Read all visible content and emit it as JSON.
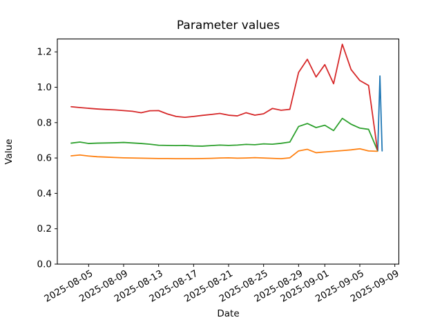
{
  "chart_data": {
    "type": "line",
    "title": "Parameter values",
    "xlabel": "Date",
    "ylabel": "Value",
    "legend": "none",
    "grid": false,
    "dates": [
      "2025-08-03",
      "2025-08-04",
      "2025-08-05",
      "2025-08-06",
      "2025-08-07",
      "2025-08-08",
      "2025-08-09",
      "2025-08-10",
      "2025-08-11",
      "2025-08-12",
      "2025-08-13",
      "2025-08-14",
      "2025-08-15",
      "2025-08-16",
      "2025-08-17",
      "2025-08-18",
      "2025-08-19",
      "2025-08-20",
      "2025-08-21",
      "2025-08-22",
      "2025-08-23",
      "2025-08-24",
      "2025-08-25",
      "2025-08-26",
      "2025-08-27",
      "2025-08-28",
      "2025-08-29",
      "2025-08-30",
      "2025-08-31",
      "2025-09-01",
      "2025-09-02",
      "2025-09-03",
      "2025-09-04",
      "2025-09-05",
      "2025-09-06",
      "2025-09-07"
    ],
    "series": [
      {
        "id": "red",
        "color": "#d62728",
        "values": [
          0.89,
          0.885,
          0.881,
          0.877,
          0.874,
          0.872,
          0.868,
          0.864,
          0.856,
          0.867,
          0.868,
          0.849,
          0.835,
          0.83,
          0.835,
          0.841,
          0.846,
          0.852,
          0.842,
          0.838,
          0.856,
          0.842,
          0.85,
          0.88,
          0.87,
          0.875,
          1.084,
          1.158,
          1.058,
          1.128,
          1.02,
          1.243,
          1.1,
          1.038,
          1.01,
          0.648
        ]
      },
      {
        "id": "green",
        "color": "#2ca02c",
        "values": [
          0.684,
          0.69,
          0.682,
          0.684,
          0.685,
          0.686,
          0.688,
          0.685,
          0.682,
          0.678,
          0.672,
          0.671,
          0.67,
          0.671,
          0.668,
          0.667,
          0.67,
          0.673,
          0.671,
          0.673,
          0.677,
          0.675,
          0.68,
          0.678,
          0.683,
          0.69,
          0.778,
          0.795,
          0.772,
          0.785,
          0.755,
          0.824,
          0.791,
          0.769,
          0.762,
          0.645
        ]
      },
      {
        "id": "orange",
        "color": "#ff7f0e",
        "values": [
          0.612,
          0.617,
          0.611,
          0.607,
          0.605,
          0.603,
          0.601,
          0.6,
          0.599,
          0.598,
          0.597,
          0.597,
          0.596,
          0.596,
          0.596,
          0.597,
          0.598,
          0.6,
          0.601,
          0.599,
          0.6,
          0.602,
          0.6,
          0.598,
          0.596,
          0.601,
          0.64,
          0.649,
          0.63,
          0.634,
          0.638,
          0.642,
          0.646,
          0.652,
          0.64,
          0.638
        ]
      }
    ],
    "spike_series": {
      "id": "blue",
      "color": "#1f77b4",
      "x_day_offsets": [
        35.05,
        35.3,
        35.55
      ],
      "values": [
        0.64,
        1.064,
        0.64
      ],
      "note_date": "2025-09-07"
    },
    "x_ticks": [
      {
        "offset": 2,
        "label": "2025-08-05"
      },
      {
        "offset": 6,
        "label": "2025-08-09"
      },
      {
        "offset": 10,
        "label": "2025-08-13"
      },
      {
        "offset": 14,
        "label": "2025-08-17"
      },
      {
        "offset": 18,
        "label": "2025-08-21"
      },
      {
        "offset": 22,
        "label": "2025-08-25"
      },
      {
        "offset": 26,
        "label": "2025-08-29"
      },
      {
        "offset": 29,
        "label": "2025-09-01"
      },
      {
        "offset": 33,
        "label": "2025-09-05"
      },
      {
        "offset": 37,
        "label": "2025-09-09"
      }
    ],
    "y_ticks": [
      {
        "value": 0.0,
        "label": "0.0"
      },
      {
        "value": 0.2,
        "label": "0.2"
      },
      {
        "value": 0.4,
        "label": "0.4"
      },
      {
        "value": 0.6,
        "label": "0.6"
      },
      {
        "value": 0.8,
        "label": "0.8"
      },
      {
        "value": 1.0,
        "label": "1.0"
      },
      {
        "value": 1.2,
        "label": "1.2"
      },
      {
        "value": 1.2,
        "label": "1.2"
      }
    ],
    "xlim_days": [
      -1.58,
      37.46
    ],
    "ylim": [
      0,
      1.273
    ],
    "x_tick_rotation_deg": 30,
    "axis_color": "#000000",
    "background_color": "#ffffff"
  }
}
